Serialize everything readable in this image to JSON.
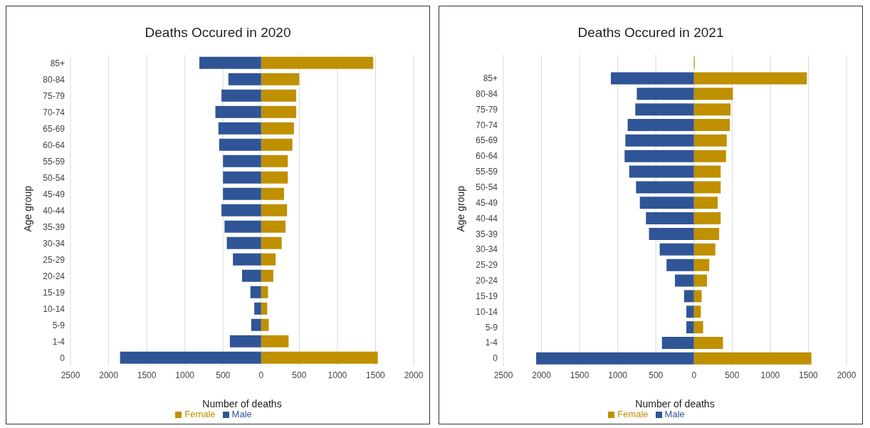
{
  "chart_data": [
    {
      "type": "bar",
      "title": "Deaths Occured in 2020",
      "xlabel": "Number of deaths",
      "ylabel": "Age group",
      "orientation": "horizontal",
      "stacked": true,
      "grid": "x",
      "legend": "bottom",
      "categories": [
        "85+",
        "80-84",
        "75-79",
        "70-74",
        "65-69",
        "60-64",
        "55-59",
        "50-54",
        "45-49",
        "40-44",
        "35-39",
        "30-34",
        "25-29",
        "20-24",
        "15-19",
        "10-14",
        "5-9",
        "1-4",
        "0"
      ],
      "series": [
        {
          "name": "Female",
          "color": "#bf9000",
          "values": [
            1470,
            500,
            460,
            460,
            430,
            410,
            350,
            350,
            300,
            340,
            320,
            270,
            190,
            160,
            90,
            80,
            100,
            360,
            1530
          ]
        },
        {
          "name": "Male",
          "color": "#2f5597",
          "values": [
            -810,
            -430,
            -520,
            -600,
            -560,
            -550,
            -500,
            -500,
            -500,
            -520,
            -480,
            -450,
            -370,
            -250,
            -140,
            -90,
            -130,
            -410,
            -1850
          ]
        }
      ],
      "xlim": [
        -2500,
        2000
      ],
      "xticks": [
        {
          "value": -2500,
          "label": "2500"
        },
        {
          "value": -2000,
          "label": "2000"
        },
        {
          "value": -1500,
          "label": "1500"
        },
        {
          "value": -1000,
          "label": "1000"
        },
        {
          "value": -500,
          "label": "500"
        },
        0,
        500,
        1000,
        1500,
        2000
      ]
    },
    {
      "type": "bar",
      "title": "Deaths Occured in 2021",
      "xlabel": "Number of deaths",
      "ylabel": "Age group",
      "orientation": "horizontal",
      "stacked": true,
      "grid": "x",
      "legend": "bottom",
      "categories": [
        null,
        "85+",
        "80-84",
        "75-79",
        "70-74",
        "65-69",
        "60-64",
        "55-59",
        "50-54",
        "45-49",
        "40-44",
        "35-39",
        "30-34",
        "25-29",
        "20-24",
        "15-19",
        "10-14",
        "5-9",
        "1-4",
        "0"
      ],
      "series": [
        {
          "name": "Male",
          "color": "#2f5597",
          "values": [
            null,
            -1090,
            -750,
            -770,
            -870,
            -900,
            -910,
            -850,
            -760,
            -710,
            -630,
            -590,
            -450,
            -360,
            -250,
            -130,
            -100,
            -100,
            -420,
            -2070
          ]
        },
        {
          "name": "Female",
          "color": "#bf9000",
          "values": [
            10,
            1480,
            510,
            480,
            470,
            430,
            420,
            350,
            350,
            310,
            350,
            330,
            280,
            200,
            170,
            100,
            90,
            120,
            380,
            1540
          ]
        }
      ],
      "xlim": [
        -2500,
        2000
      ],
      "xticks": [
        {
          "value": -2500,
          "label": "2500"
        },
        {
          "value": -2000,
          "label": "2000"
        },
        {
          "value": -1500,
          "label": "1500"
        },
        {
          "value": -1000,
          "label": "1000"
        },
        {
          "value": -500,
          "label": "500"
        },
        0,
        500,
        1000,
        1500,
        2000
      ]
    }
  ]
}
